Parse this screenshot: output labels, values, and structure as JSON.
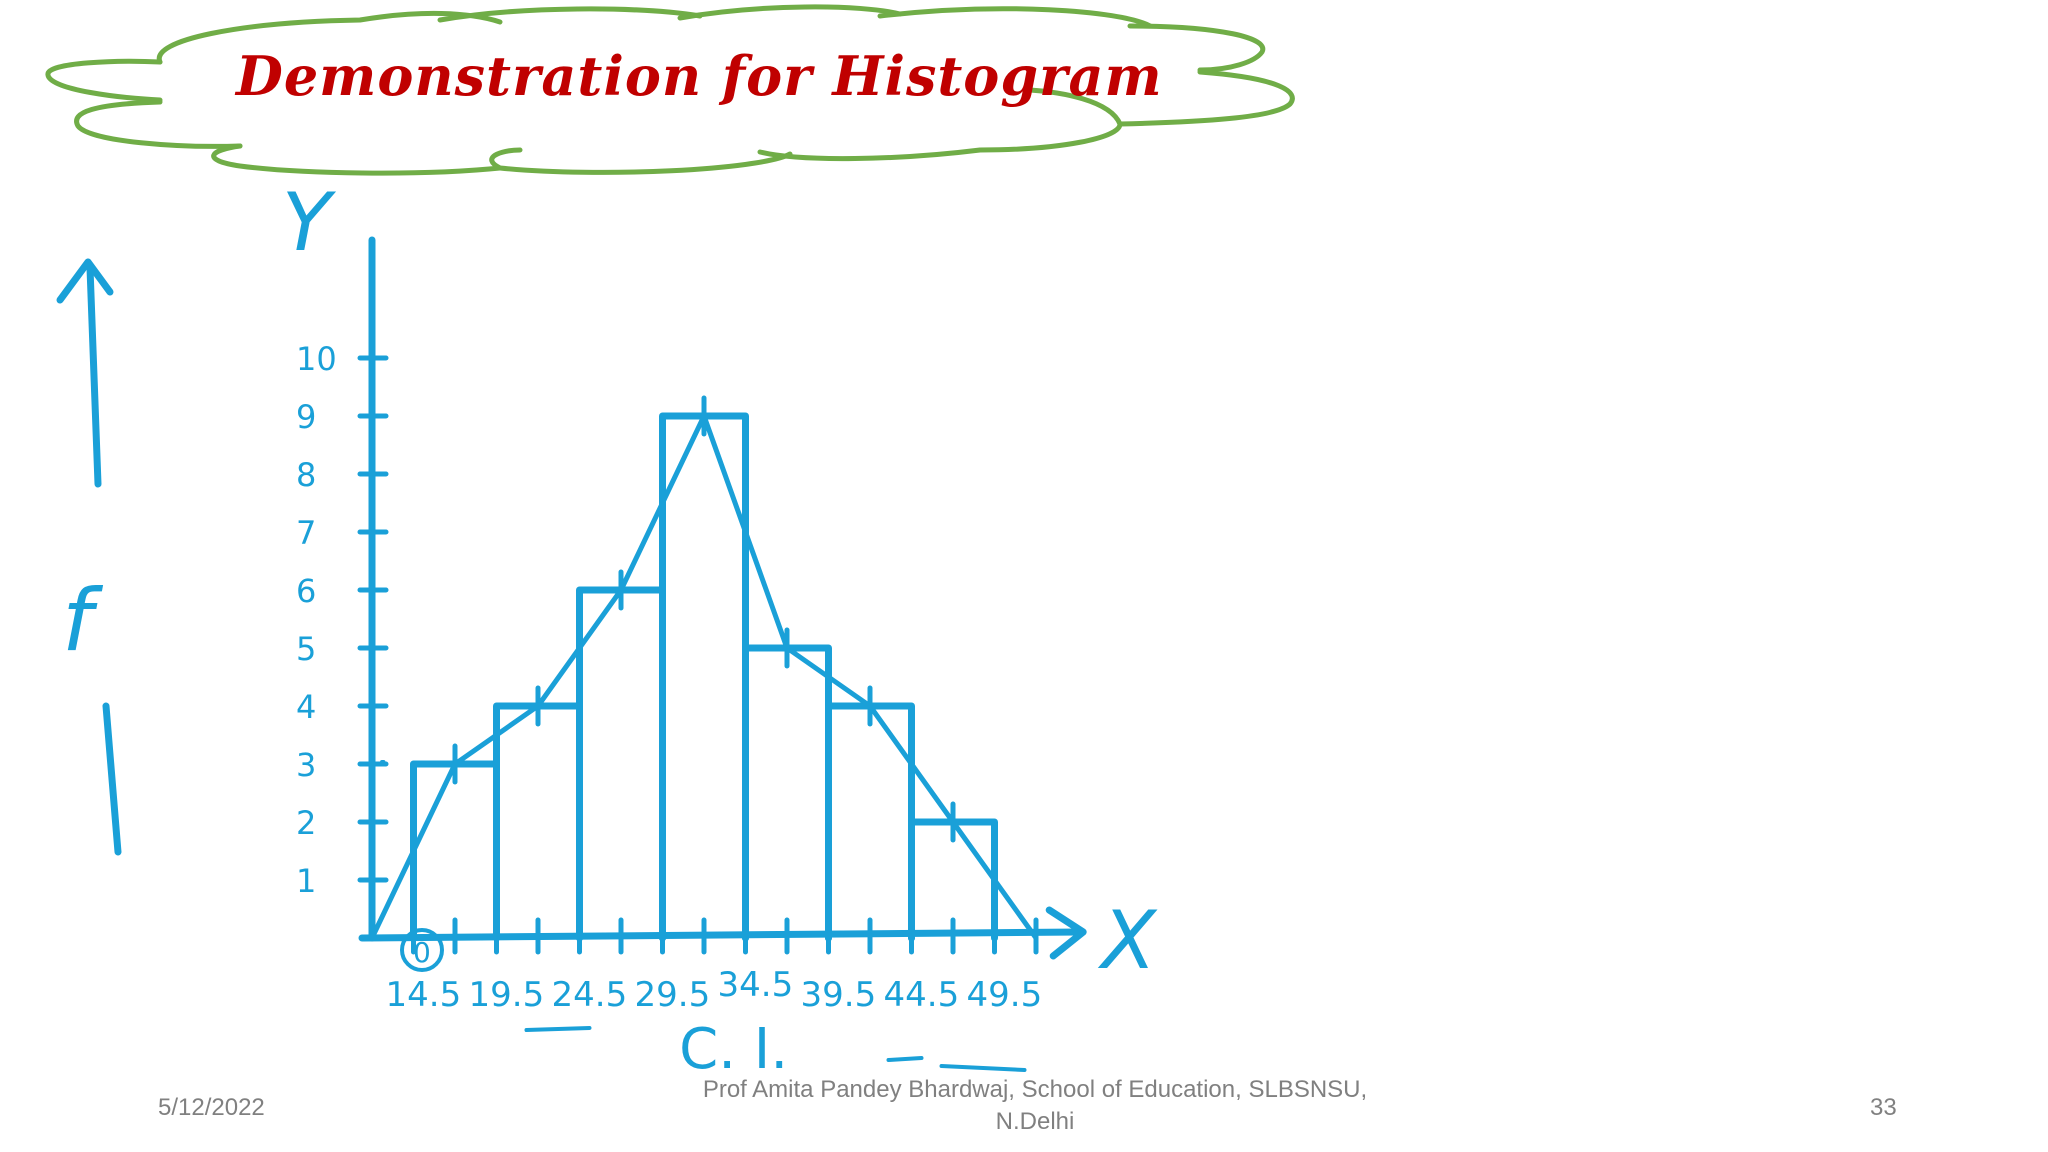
{
  "slide": {
    "title": "Demonstration for Histogram",
    "footer_date": "5/12/2022",
    "footer_author": "Prof Amita Pandey Bhardwaj, School of Education, SLBSNSU, N.Delhi",
    "footer_page": "33"
  },
  "colors": {
    "ink": "#1aa0d8",
    "title": "#c00000",
    "cloud": "#70ad47",
    "footer": "#808080"
  },
  "chart_data": {
    "type": "bar",
    "title": "",
    "xlabel": "C. I.",
    "ylabel": "f",
    "x_axis_letter": "X",
    "y_axis_letter": "Y",
    "origin_label": "0",
    "y_ticks": [
      "1",
      "2",
      "3",
      "4",
      "5",
      "6",
      "7",
      "8",
      "9",
      "10"
    ],
    "x_boundary_labels": [
      "14.5",
      "19.5",
      "24.5",
      "29.5",
      "34.5",
      "39.5",
      "44.5",
      "49.5"
    ],
    "bins": [
      {
        "from": 14.5,
        "to": 19.5,
        "value": 3
      },
      {
        "from": 19.5,
        "to": 24.5,
        "value": 4
      },
      {
        "from": 24.5,
        "to": 29.5,
        "value": 6
      },
      {
        "from": 29.5,
        "to": 34.5,
        "value": 9
      },
      {
        "from": 34.5,
        "to": 39.5,
        "value": 5
      },
      {
        "from": 39.5,
        "to": 44.5,
        "value": 4
      },
      {
        "from": 44.5,
        "to": 49.5,
        "value": 2
      }
    ],
    "polygon_ends": [
      12,
      52
    ],
    "ylim": [
      0,
      10
    ],
    "xlim": [
      12,
      54
    ],
    "grid": false,
    "legend": "none"
  }
}
